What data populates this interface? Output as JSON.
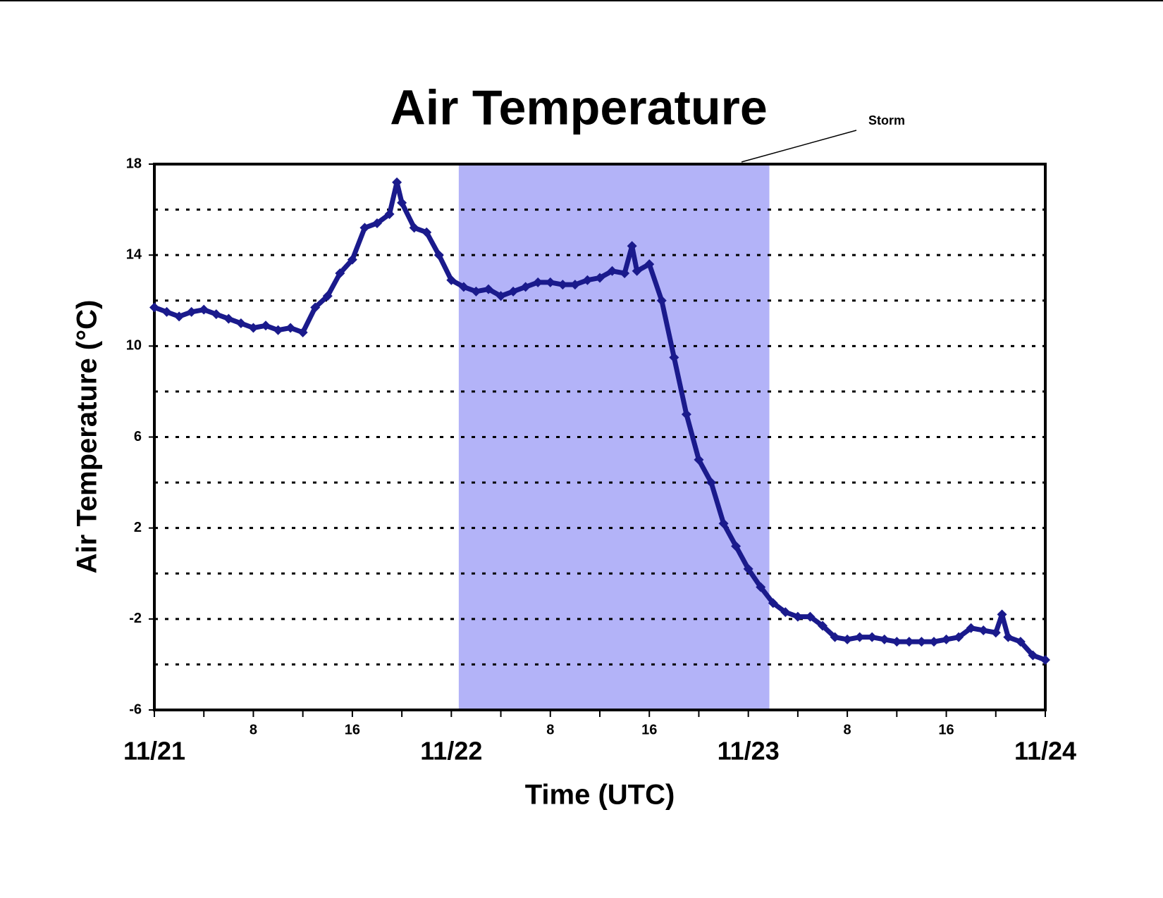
{
  "chart_data": {
    "type": "line",
    "title": "Air Temperature",
    "x_label": "Time (UTC)",
    "y_label": "Air Temperature (°C)",
    "annotation": "Storm",
    "shaded_region": {
      "start": 24.6,
      "end": 49.7,
      "color": "#b3b3f8"
    },
    "xlim": [
      0,
      72
    ],
    "xticks": [
      {
        "value": 0,
        "label": "11/21"
      },
      8,
      16,
      {
        "value": 24,
        "label": "11/22"
      },
      {
        "value": 32,
        "label": "8"
      },
      {
        "value": 40,
        "label": "16"
      },
      {
        "value": 48,
        "label": "11/23"
      },
      {
        "value": 56,
        "label": "8"
      },
      {
        "value": 64,
        "label": "16"
      },
      {
        "value": 72,
        "label": "11/24"
      }
    ],
    "xminorticks": [
      4,
      12,
      20,
      28,
      36,
      44,
      52,
      60,
      68
    ],
    "ylim": [
      -6,
      18
    ],
    "yticks": [
      -6,
      -2,
      2,
      6,
      10,
      14,
      18
    ],
    "yminorticks": [
      -4,
      0,
      4,
      8,
      12,
      16
    ],
    "grid": true,
    "series": [
      {
        "name": "Air Temperature",
        "color": "#1a1a8c",
        "x": [
          0,
          1,
          2,
          3,
          4,
          5,
          6,
          7,
          8,
          9,
          10,
          11,
          12,
          13,
          14,
          15,
          16,
          17,
          18,
          19,
          19.6,
          20,
          21,
          22,
          23,
          24,
          25,
          26,
          27,
          28,
          29,
          30,
          31,
          32,
          33,
          34,
          35,
          36,
          37,
          38,
          38.6,
          39,
          40,
          41,
          42,
          43,
          44,
          45,
          46,
          47,
          48,
          49,
          50,
          51,
          52,
          53,
          54,
          55,
          56,
          57,
          58,
          59,
          60,
          61,
          62,
          63,
          64,
          65,
          66,
          67,
          68,
          68.5,
          69,
          70,
          71,
          72
        ],
        "values": [
          11.7,
          11.5,
          11.3,
          11.5,
          11.6,
          11.4,
          11.2,
          11.0,
          10.8,
          10.9,
          10.7,
          10.8,
          10.6,
          11.7,
          12.2,
          13.2,
          13.8,
          15.2,
          15.4,
          15.8,
          17.2,
          16.3,
          15.2,
          15.0,
          14.0,
          12.9,
          12.6,
          12.4,
          12.5,
          12.2,
          12.4,
          12.6,
          12.8,
          12.8,
          12.7,
          12.7,
          12.9,
          13.0,
          13.3,
          13.2,
          14.4,
          13.3,
          13.6,
          12.0,
          9.5,
          7.0,
          5.0,
          4.0,
          2.2,
          1.2,
          0.2,
          -0.6,
          -1.3,
          -1.7,
          -1.9,
          -1.9,
          -2.3,
          -2.8,
          -2.9,
          -2.8,
          -2.8,
          -2.9,
          -3.0,
          -3.0,
          -3.0,
          -3.0,
          -2.9,
          -2.8,
          -2.4,
          -2.5,
          -2.6,
          -1.8,
          -2.8,
          -3.0,
          -3.6,
          -3.8
        ]
      }
    ]
  }
}
